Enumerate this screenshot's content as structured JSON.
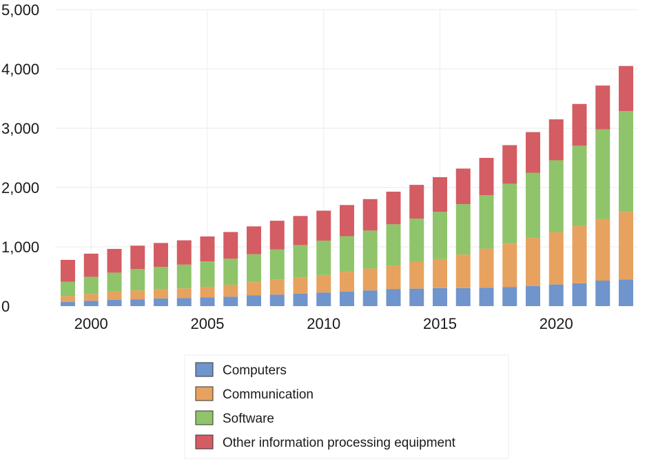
{
  "chart_data": {
    "type": "bar",
    "stacked": true,
    "title": "",
    "xlabel": "",
    "ylabel": "",
    "ylim": [
      0,
      5000
    ],
    "yticks": [
      "0",
      "1,000",
      "2,000",
      "3,000",
      "4,000",
      "5,000"
    ],
    "ytick_values": [
      0,
      1000,
      2000,
      3000,
      4000,
      5000
    ],
    "xticks": [
      "2000",
      "2005",
      "2010",
      "2015",
      "2020"
    ],
    "xtick_values": [
      2000,
      2005,
      2010,
      2015,
      2020
    ],
    "grid": true,
    "legend_position": "bottom",
    "categories": [
      1999,
      2000,
      2001,
      2002,
      2003,
      2004,
      2005,
      2006,
      2007,
      2008,
      2009,
      2010,
      2011,
      2012,
      2013,
      2014,
      2015,
      2016,
      2017,
      2018,
      2019,
      2020,
      2021,
      2022,
      2023
    ],
    "series": [
      {
        "name": "Computers",
        "color": "#7094cc",
        "values": [
          70,
          90,
          105,
          115,
          130,
          135,
          145,
          160,
          180,
          195,
          210,
          230,
          245,
          265,
          285,
          295,
          305,
          305,
          310,
          320,
          340,
          365,
          385,
          430,
          450
        ]
      },
      {
        "name": "Communication",
        "color": "#e7a25f",
        "values": [
          100,
          115,
          140,
          150,
          160,
          165,
          180,
          200,
          225,
          250,
          275,
          295,
          335,
          370,
          400,
          455,
          490,
          565,
          660,
          735,
          810,
          880,
          965,
          1040,
          1140
        ]
      },
      {
        "name": "Software",
        "color": "#8fc46a",
        "values": [
          240,
          290,
          320,
          360,
          370,
          400,
          430,
          440,
          470,
          510,
          545,
          580,
          600,
          640,
          695,
          725,
          795,
          850,
          900,
          1010,
          1100,
          1215,
          1355,
          1510,
          1700
        ]
      },
      {
        "name": "Other information processing equipment",
        "color": "#d45c63",
        "values": [
          370,
          390,
          400,
          395,
          405,
          410,
          420,
          450,
          470,
          485,
          490,
          505,
          525,
          530,
          550,
          570,
          585,
          600,
          630,
          650,
          685,
          690,
          705,
          740,
          760
        ]
      }
    ]
  }
}
